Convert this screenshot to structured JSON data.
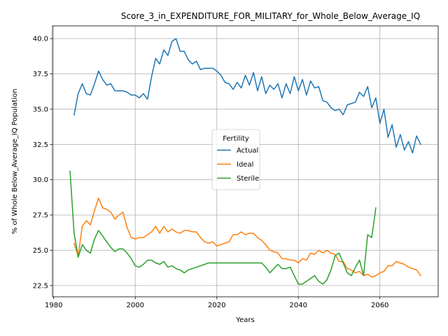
{
  "chart_data": {
    "type": "line",
    "title": "Score_3_in_EXPENDITURE_FOR_MILITARY_for_Whole_Below_Average_IQ",
    "xlabel": "Years",
    "ylabel": "% of Whole Below_Average_IQ Population",
    "xlim": [
      1979.7,
      2074.3
    ],
    "ylim": [
      21.7,
      40.9
    ],
    "xticks": [
      1980,
      2000,
      2020,
      2040,
      2060
    ],
    "yticks": [
      22.5,
      25.0,
      27.5,
      30.0,
      32.5,
      35.0,
      37.5,
      40.0
    ],
    "xtick_labels": [
      "1980",
      "2000",
      "2020",
      "2040",
      "2060"
    ],
    "ytick_labels": [
      "22.5",
      "25.0",
      "27.5",
      "30.0",
      "32.5",
      "35.0",
      "37.5",
      "40.0"
    ],
    "grid": true,
    "legend": {
      "title": "Fertility",
      "placement": "center-right"
    },
    "series": [
      {
        "name": "Actual",
        "color": "#1f77b4",
        "x": [
          1985,
          1986,
          1987,
          1988,
          1989,
          1990,
          1991,
          1992,
          1993,
          1994,
          1995,
          1996,
          1997,
          1998,
          1999,
          2000,
          2001,
          2002,
          2003,
          2004,
          2005,
          2006,
          2007,
          2008,
          2009,
          2010,
          2011,
          2012,
          2013,
          2014,
          2015,
          2016,
          2017,
          2018,
          2019,
          2020,
          2021,
          2022,
          2023,
          2024,
          2025,
          2026,
          2027,
          2028,
          2029,
          2030,
          2031,
          2032,
          2033,
          2034,
          2035,
          2036,
          2037,
          2038,
          2039,
          2040,
          2041,
          2042,
          2043,
          2044,
          2045,
          2046,
          2047,
          2048,
          2049,
          2050,
          2051,
          2052,
          2053,
          2054,
          2055,
          2056,
          2057,
          2058,
          2059,
          2060,
          2061,
          2062,
          2063,
          2064,
          2065,
          2066,
          2067,
          2068,
          2069,
          2070
        ],
        "values": [
          34.6,
          36.1,
          36.8,
          36.1,
          36.0,
          36.8,
          37.7,
          37.1,
          36.7,
          36.8,
          36.3,
          36.3,
          36.3,
          36.2,
          36.0,
          36.0,
          35.8,
          36.1,
          35.7,
          37.3,
          38.6,
          38.2,
          39.2,
          38.8,
          39.8,
          40.0,
          39.1,
          39.1,
          38.5,
          38.2,
          38.4,
          37.8,
          37.9,
          37.9,
          37.9,
          37.7,
          37.4,
          36.9,
          36.8,
          36.4,
          36.9,
          36.5,
          37.4,
          36.7,
          37.6,
          36.3,
          37.3,
          36.1,
          36.7,
          36.4,
          36.8,
          35.8,
          36.8,
          36.1,
          37.3,
          36.3,
          37.1,
          36.0,
          37.0,
          36.5,
          36.6,
          35.6,
          35.5,
          35.1,
          34.9,
          35.0,
          34.6,
          35.3,
          35.4,
          35.5,
          36.2,
          35.9,
          36.6,
          35.1,
          35.8,
          34.0,
          35.0,
          33.0,
          33.9,
          32.3,
          33.2,
          32.1,
          32.7,
          31.9,
          33.1,
          32.5
        ]
      },
      {
        "name": "Ideal",
        "color": "#ff7f0e",
        "x": [
          1985,
          1986,
          1987,
          1988,
          1989,
          1990,
          1991,
          1992,
          1993,
          1994,
          1995,
          1996,
          1997,
          1998,
          1999,
          2000,
          2001,
          2002,
          2003,
          2004,
          2005,
          2006,
          2007,
          2008,
          2009,
          2010,
          2011,
          2012,
          2013,
          2014,
          2015,
          2016,
          2017,
          2018,
          2019,
          2020,
          2021,
          2022,
          2023,
          2024,
          2025,
          2026,
          2027,
          2028,
          2029,
          2030,
          2031,
          2032,
          2033,
          2034,
          2035,
          2036,
          2037,
          2038,
          2039,
          2040,
          2041,
          2042,
          2043,
          2044,
          2045,
          2046,
          2047,
          2048,
          2049,
          2050,
          2051,
          2052,
          2053,
          2054,
          2055,
          2056,
          2057,
          2058,
          2059,
          2060,
          2061,
          2062,
          2063,
          2064,
          2065,
          2066,
          2067,
          2068,
          2069,
          2070
        ],
        "values": [
          25.5,
          24.6,
          26.7,
          27.1,
          26.8,
          27.8,
          28.7,
          28.0,
          27.9,
          27.7,
          27.2,
          27.5,
          27.7,
          26.6,
          25.9,
          25.8,
          25.9,
          25.9,
          26.1,
          26.3,
          26.7,
          26.2,
          26.7,
          26.3,
          26.5,
          26.3,
          26.2,
          26.4,
          26.4,
          26.3,
          26.3,
          25.9,
          25.6,
          25.5,
          25.6,
          25.3,
          25.4,
          25.5,
          25.6,
          26.1,
          26.1,
          26.3,
          26.1,
          26.2,
          26.2,
          25.9,
          25.7,
          25.4,
          25.0,
          24.9,
          24.8,
          24.4,
          24.4,
          24.3,
          24.3,
          24.1,
          24.4,
          24.3,
          24.8,
          24.7,
          25.0,
          24.8,
          25.0,
          24.8,
          24.7,
          24.2,
          24.2,
          23.7,
          23.6,
          23.4,
          23.5,
          23.2,
          23.3,
          23.1,
          23.2,
          23.4,
          23.5,
          23.9,
          23.9,
          24.2,
          24.1,
          24.0,
          23.8,
          23.7,
          23.6,
          23.2
        ]
      },
      {
        "name": "Sterile",
        "color": "#2ca02c",
        "x": [
          1984,
          1985,
          1986,
          1987,
          1988,
          1989,
          1990,
          1991,
          1992,
          1993,
          1994,
          1995,
          1996,
          1997,
          1998,
          1999,
          2000,
          2001,
          2002,
          2003,
          2004,
          2005,
          2006,
          2007,
          2008,
          2009,
          2010,
          2011,
          2012,
          2013,
          2014,
          2015,
          2016,
          2017,
          2018,
          2019,
          2020,
          2021,
          2022,
          2023,
          2024,
          2025,
          2026,
          2027,
          2028,
          2029,
          2030,
          2031,
          2032,
          2033,
          2034,
          2035,
          2036,
          2037,
          2038,
          2039,
          2040,
          2041,
          2042,
          2043,
          2044,
          2045,
          2046,
          2047,
          2048,
          2049,
          2050,
          2051,
          2052,
          2053,
          2054,
          2055,
          2056,
          2057,
          2058,
          2059
        ],
        "values": [
          30.6,
          26.2,
          24.5,
          25.4,
          25.0,
          24.8,
          25.8,
          26.4,
          26.0,
          25.6,
          25.2,
          24.9,
          25.1,
          25.1,
          24.8,
          24.4,
          23.9,
          23.8,
          24.0,
          24.3,
          24.3,
          24.1,
          24.0,
          24.2,
          23.8,
          23.9,
          23.7,
          23.6,
          23.4,
          23.6,
          23.7,
          23.8,
          23.9,
          24.0,
          24.1,
          24.1,
          24.1,
          24.1,
          24.1,
          24.1,
          24.1,
          24.1,
          24.1,
          24.1,
          24.1,
          24.1,
          24.1,
          24.1,
          23.8,
          23.4,
          23.7,
          24.0,
          23.7,
          23.7,
          23.8,
          23.2,
          22.6,
          22.6,
          22.8,
          23.0,
          23.2,
          22.8,
          22.6,
          22.9,
          23.6,
          24.6,
          24.8,
          24.1,
          23.4,
          23.2,
          23.8,
          24.3,
          23.2,
          26.1,
          25.9,
          28.0
        ]
      }
    ]
  }
}
